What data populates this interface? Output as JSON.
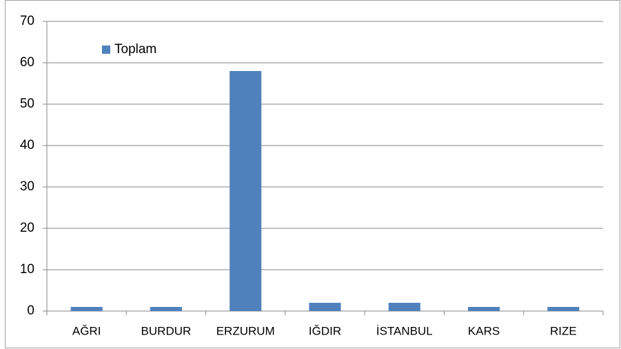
{
  "chart_data": {
    "type": "bar",
    "categories": [
      "AĞRI",
      "BURDUR",
      "ERZURUM",
      "IĞDIR",
      "İSTANBUL",
      "KARS",
      "RIZE"
    ],
    "series": [
      {
        "name": "Toplam",
        "color": "#4f81bd",
        "values": [
          1,
          1,
          58,
          2,
          2,
          1,
          1
        ]
      }
    ],
    "ylim": [
      0,
      70
    ],
    "yticks": [
      0,
      10,
      20,
      30,
      40,
      50,
      60,
      70
    ],
    "grid": true,
    "legend": "top-left"
  }
}
